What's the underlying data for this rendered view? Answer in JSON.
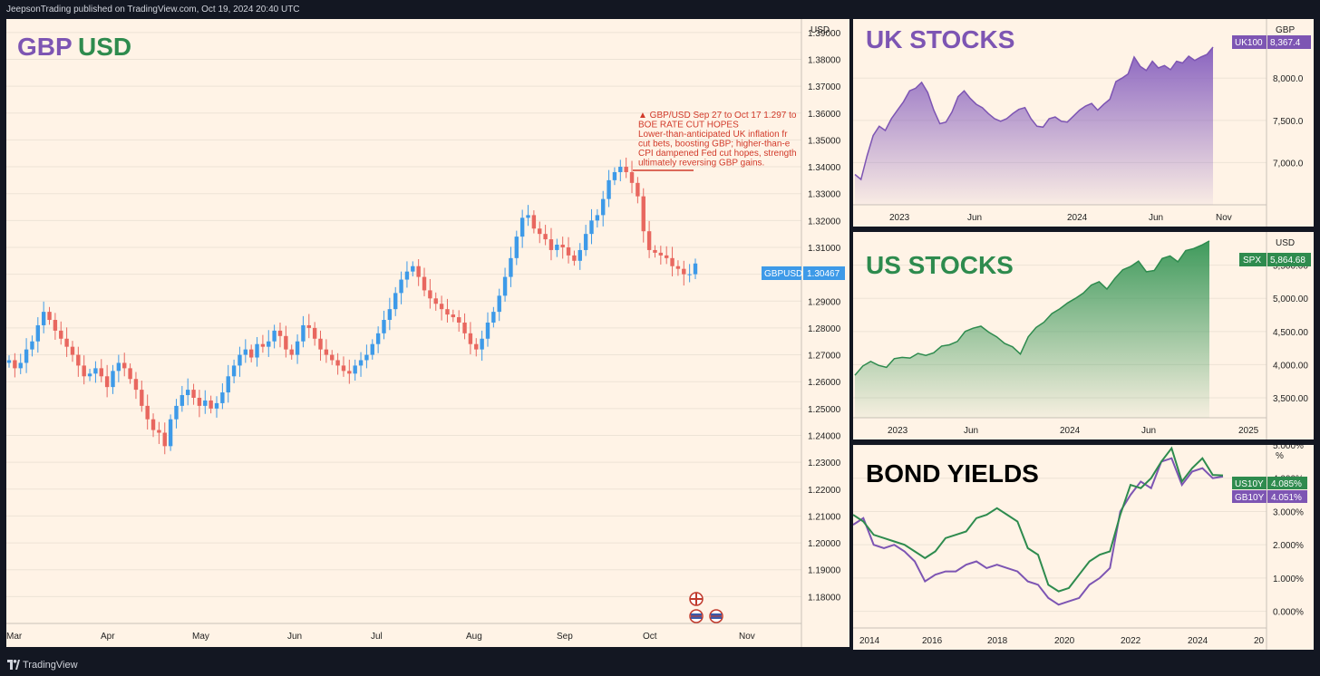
{
  "header": {
    "published": "JeepsonTrading published on TradingView.com, Oct 19, 2024 20:40 UTC"
  },
  "footer": {
    "brand": "TradingView"
  },
  "colors": {
    "background": "#fff3e6",
    "up": "#3d9ae8",
    "down": "#e8675f",
    "purple": "#7d55b3",
    "green": "#2e8b4e",
    "annotation": "#d13a2a",
    "axis_text": "#1f1f1f"
  },
  "main_chart": {
    "title_part1": "GBP",
    "title_part2": "USD",
    "currency": "USD",
    "symbol_label": "GBPUSD",
    "last_price_label": "1.30467",
    "last_price": 1.30467,
    "annotation": {
      "lines": [
        "▲ GBP/USD Sep 27 to Oct 17 1.297 to",
        "BOE RATE CUT HOPES",
        "Lower-than-anticipated UK inflation fr",
        "cut bets, boosting GBP; higher-than-e",
        "CPI dampened Fed cut hopes, strength",
        "ultimately reversing GBP gains."
      ]
    }
  },
  "chart_data": [
    {
      "type": "candlestick",
      "title": "GBP USD",
      "ylabel": "USD",
      "ylim": [
        1.17,
        1.395
      ],
      "y_ticks": [
        "1.39000",
        "1.38000",
        "1.37000",
        "1.36000",
        "1.35000",
        "1.34000",
        "1.33000",
        "1.32000",
        "1.31000",
        "1.30000",
        "1.29000",
        "1.28000",
        "1.27000",
        "1.26000",
        "1.25000",
        "1.24000",
        "1.23000",
        "1.22000",
        "1.21000",
        "1.20000",
        "1.19000",
        "1.18000"
      ],
      "x_ticks": [
        "Mar",
        "Apr",
        "May",
        "Jun",
        "Jul",
        "Aug",
        "Sep",
        "Oct",
        "Nov"
      ],
      "close_path": [
        1.268,
        1.265,
        1.267,
        1.272,
        1.275,
        1.281,
        1.286,
        1.283,
        1.279,
        1.276,
        1.273,
        1.27,
        1.266,
        1.262,
        1.263,
        1.265,
        1.262,
        1.258,
        1.264,
        1.267,
        1.265,
        1.261,
        1.257,
        1.251,
        1.246,
        1.242,
        1.241,
        1.236,
        1.246,
        1.251,
        1.255,
        1.257,
        1.254,
        1.251,
        1.253,
        1.25,
        1.252,
        1.256,
        1.262,
        1.266,
        1.27,
        1.272,
        1.269,
        1.274,
        1.273,
        1.275,
        1.279,
        1.277,
        1.272,
        1.27,
        1.275,
        1.281,
        1.28,
        1.276,
        1.272,
        1.27,
        1.268,
        1.266,
        1.264,
        1.263,
        1.266,
        1.268,
        1.27,
        1.274,
        1.278,
        1.283,
        1.287,
        1.293,
        1.298,
        1.301,
        1.303,
        1.299,
        1.294,
        1.291,
        1.289,
        1.287,
        1.285,
        1.284,
        1.282,
        1.278,
        1.274,
        1.272,
        1.276,
        1.282,
        1.286,
        1.292,
        1.299,
        1.306,
        1.314,
        1.321,
        1.322,
        1.317,
        1.315,
        1.313,
        1.309,
        1.311,
        1.31,
        1.307,
        1.305,
        1.309,
        1.315,
        1.32,
        1.322,
        1.328,
        1.335,
        1.338,
        1.34,
        1.338,
        1.334,
        1.329,
        1.316,
        1.309,
        1.308,
        1.307,
        1.306,
        1.303,
        1.302,
        1.3,
        1.3,
        1.304
      ],
      "series": [
        {
          "name": "GBPUSD",
          "last": 1.30467
        }
      ]
    },
    {
      "type": "area",
      "title": "UK STOCKS",
      "ylabel": "GBP",
      "symbol": "UK100",
      "last_label": "8,367.4",
      "ylim": [
        6500,
        8700
      ],
      "y_ticks": [
        8000,
        7500,
        7000
      ],
      "y_tick_labels": [
        "8,000.0",
        "7,500.0",
        "7,000.0"
      ],
      "x_ticks": [
        "2023",
        "Jun",
        "2024",
        "Jun",
        "Nov"
      ],
      "values": [
        6860,
        6800,
        7080,
        7320,
        7430,
        7380,
        7520,
        7620,
        7720,
        7850,
        7880,
        7950,
        7830,
        7620,
        7460,
        7480,
        7600,
        7780,
        7850,
        7760,
        7690,
        7650,
        7580,
        7520,
        7490,
        7520,
        7580,
        7630,
        7650,
        7520,
        7430,
        7420,
        7520,
        7540,
        7490,
        7480,
        7550,
        7620,
        7670,
        7700,
        7620,
        7690,
        7750,
        7960,
        8000,
        8050,
        8250,
        8140,
        8090,
        8200,
        8120,
        8150,
        8100,
        8200,
        8180,
        8260,
        8210,
        8250,
        8280,
        8367
      ]
    },
    {
      "type": "area",
      "title": "US STOCKS",
      "ylabel": "USD",
      "symbol": "SPX",
      "last_label": "5,864.68",
      "ylim": [
        3200,
        6000
      ],
      "y_ticks": [
        5500,
        5000,
        4500,
        4000,
        3500
      ],
      "y_tick_labels": [
        "5,500.00",
        "5,000.00",
        "4,500.00",
        "4,000.00",
        "3,500.00"
      ],
      "x_ticks": [
        "2023",
        "Jun",
        "2024",
        "Jun",
        "2025"
      ],
      "values": [
        3840,
        3980,
        4050,
        3990,
        3960,
        4090,
        4110,
        4100,
        4170,
        4140,
        4180,
        4280,
        4300,
        4350,
        4500,
        4550,
        4580,
        4490,
        4420,
        4320,
        4270,
        4160,
        4420,
        4560,
        4640,
        4770,
        4840,
        4930,
        5000,
        5080,
        5200,
        5250,
        5140,
        5300,
        5430,
        5480,
        5560,
        5400,
        5420,
        5600,
        5640,
        5550,
        5720,
        5750,
        5800,
        5864.68
      ]
    },
    {
      "type": "line",
      "title": "BOND YIELDS",
      "ylabel": "%",
      "ylim": [
        -0.5,
        5.0
      ],
      "y_ticks": [
        5,
        4,
        3,
        2,
        1,
        0
      ],
      "y_tick_labels": [
        "5.000%",
        "4.000%",
        "3.000%",
        "2.000%",
        "1.000%",
        "0.000%"
      ],
      "x_ticks": [
        "2014",
        "2016",
        "2018",
        "2020",
        "2022",
        "2024",
        "20"
      ],
      "series": [
        {
          "name": "US10Y",
          "last_label": "4.085%",
          "values": [
            2.9,
            2.7,
            2.3,
            2.2,
            2.1,
            2.0,
            1.8,
            1.6,
            1.8,
            2.2,
            2.3,
            2.4,
            2.8,
            2.9,
            3.1,
            2.9,
            2.7,
            1.9,
            1.7,
            0.8,
            0.6,
            0.7,
            1.1,
            1.5,
            1.7,
            1.8,
            2.9,
            3.8,
            3.7,
            4.0,
            4.5,
            4.9,
            3.9,
            4.3,
            4.6,
            4.1,
            4.085
          ]
        },
        {
          "name": "GB10Y",
          "last_label": "4.051%",
          "values": [
            2.6,
            2.8,
            2.0,
            1.9,
            2.0,
            1.8,
            1.5,
            0.9,
            1.1,
            1.2,
            1.2,
            1.4,
            1.5,
            1.3,
            1.4,
            1.3,
            1.2,
            0.9,
            0.8,
            0.4,
            0.2,
            0.3,
            0.4,
            0.8,
            1.0,
            1.3,
            3.0,
            3.5,
            3.9,
            3.7,
            4.5,
            4.6,
            3.8,
            4.2,
            4.3,
            4.0,
            4.051
          ]
        }
      ]
    }
  ]
}
